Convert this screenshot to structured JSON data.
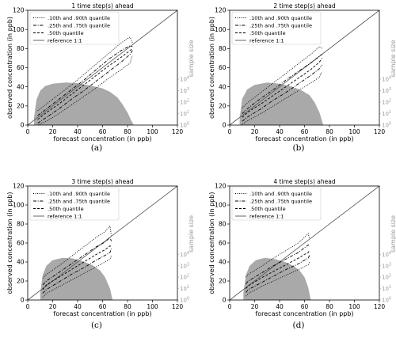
{
  "figure": {
    "captions": [
      "(a)",
      "(b)",
      "(c)",
      "(d)"
    ]
  },
  "styles": {
    "histogram_color": "#a9a9a9",
    "reference_color": "#555555",
    "sample_axis_color": "#999999"
  },
  "chart_data": [
    {
      "type": "line",
      "title": "1 time step(s) ahead",
      "xlabel": "forecast concentration (in ppb)",
      "ylabel": "observed concentration (in ppb)",
      "y2label": "sample size",
      "xlim": [
        0,
        120
      ],
      "ylim": [
        0,
        120
      ],
      "xticks": [
        0,
        20,
        40,
        60,
        80,
        100,
        120
      ],
      "yticks": [
        0,
        20,
        40,
        60,
        80,
        100,
        120
      ],
      "y2ticks": [
        "10^0",
        "10^1",
        "10^2",
        "10^3",
        "10^4"
      ],
      "legend": {
        "position": "upper-left",
        "entries": [
          ".10th and .90th quantile",
          ".25th and .75th quantile",
          ".50th quantile",
          "reference 1:1"
        ]
      },
      "reference": [
        [
          0,
          0
        ],
        [
          120,
          120
        ]
      ],
      "series": [
        {
          "name": ".10th quantile",
          "style": "dotted",
          "x": [
            8,
            15,
            25,
            35,
            45,
            55,
            65,
            75,
            82,
            84
          ],
          "y": [
            0,
            4,
            12,
            21,
            30,
            39,
            49,
            58,
            65,
            73
          ]
        },
        {
          "name": ".25th quantile",
          "style": "dashdot",
          "x": [
            8,
            15,
            25,
            35,
            45,
            55,
            65,
            75,
            82,
            84
          ],
          "y": [
            2,
            8,
            17,
            27,
            36,
            46,
            56,
            66,
            74,
            78
          ]
        },
        {
          "name": ".50th quantile",
          "style": "dashed",
          "x": [
            8,
            15,
            25,
            35,
            45,
            55,
            65,
            75,
            82,
            84
          ],
          "y": [
            6,
            13,
            22,
            32,
            42,
            52,
            62,
            71,
            78,
            80
          ]
        },
        {
          "name": ".75th quantile",
          "style": "dashdot",
          "x": [
            8,
            15,
            25,
            35,
            45,
            55,
            65,
            75,
            82,
            84
          ],
          "y": [
            10,
            17,
            27,
            37,
            47,
            58,
            69,
            78,
            83,
            82
          ]
        },
        {
          "name": ".90th quantile",
          "style": "dotted",
          "x": [
            8,
            15,
            25,
            35,
            45,
            55,
            65,
            75,
            82,
            84
          ],
          "y": [
            15,
            22,
            32,
            42,
            53,
            64,
            75,
            86,
            92,
            86
          ]
        }
      ],
      "histogram": {
        "x_range": [
          5,
          85
        ],
        "log_scale": true,
        "shape": [
          [
            5,
            0.6
          ],
          [
            7,
            2.2
          ],
          [
            10,
            3.0
          ],
          [
            14,
            3.4
          ],
          [
            20,
            3.6
          ],
          [
            30,
            3.7
          ],
          [
            40,
            3.65
          ],
          [
            50,
            3.45
          ],
          [
            60,
            3.2
          ],
          [
            66,
            2.9
          ],
          [
            72,
            2.4
          ],
          [
            76,
            1.8
          ],
          [
            80,
            1.1
          ],
          [
            83,
            0.4
          ],
          [
            85,
            0
          ]
        ]
      }
    },
    {
      "type": "line",
      "title": "2 time step(s) ahead",
      "xlabel": "forecast concentration (in ppb)",
      "ylabel": "observed concentration (in ppb)",
      "y2label": "sample size",
      "xlim": [
        0,
        120
      ],
      "ylim": [
        0,
        120
      ],
      "xticks": [
        0,
        20,
        40,
        60,
        80,
        100,
        120
      ],
      "yticks": [
        0,
        20,
        40,
        60,
        80,
        100,
        120
      ],
      "y2ticks": [
        "10^0",
        "10^1",
        "10^2",
        "10^3",
        "10^4"
      ],
      "legend": {
        "position": "upper-left",
        "entries": [
          ".10th and .90th quantile",
          ".25th and .75th quantile",
          ".50th quantile",
          "reference 1:1"
        ]
      },
      "reference": [
        [
          0,
          0
        ],
        [
          120,
          120
        ]
      ],
      "series": [
        {
          "name": ".10th quantile",
          "style": "dotted",
          "x": [
            10,
            15,
            25,
            35,
            45,
            55,
            65,
            72,
            74
          ],
          "y": [
            1,
            5,
            12,
            20,
            28,
            36,
            44,
            50,
            56
          ]
        },
        {
          "name": ".25th quantile",
          "style": "dashdot",
          "x": [
            10,
            15,
            25,
            35,
            45,
            55,
            65,
            72,
            74
          ],
          "y": [
            4,
            9,
            17,
            26,
            34,
            43,
            52,
            59,
            63
          ]
        },
        {
          "name": ".50th quantile",
          "style": "dashed",
          "x": [
            10,
            15,
            25,
            35,
            45,
            55,
            65,
            72,
            74
          ],
          "y": [
            8,
            14,
            22,
            31,
            40,
            49,
            58,
            66,
            70
          ]
        },
        {
          "name": ".75th quantile",
          "style": "dashdot",
          "x": [
            10,
            15,
            25,
            35,
            45,
            55,
            65,
            72,
            74
          ],
          "y": [
            12,
            18,
            28,
            37,
            47,
            56,
            65,
            72,
            74
          ]
        },
        {
          "name": ".90th quantile",
          "style": "dotted",
          "x": [
            10,
            15,
            25,
            35,
            45,
            55,
            65,
            72,
            74
          ],
          "y": [
            18,
            24,
            34,
            44,
            54,
            64,
            74,
            82,
            80
          ]
        }
      ],
      "histogram": {
        "x_range": [
          8,
          75
        ],
        "log_scale": true,
        "shape": [
          [
            8,
            0.6
          ],
          [
            10,
            2.3
          ],
          [
            14,
            3.1
          ],
          [
            20,
            3.5
          ],
          [
            30,
            3.7
          ],
          [
            40,
            3.6
          ],
          [
            50,
            3.35
          ],
          [
            58,
            3.0
          ],
          [
            64,
            2.6
          ],
          [
            68,
            2.0
          ],
          [
            72,
            1.1
          ],
          [
            75,
            0
          ]
        ]
      }
    },
    {
      "type": "line",
      "title": "3 time step(s) ahead",
      "xlabel": "forecast concentration (in ppb)",
      "ylabel": "observed concentration (in ppb)",
      "y2label": "sample size",
      "xlim": [
        0,
        120
      ],
      "ylim": [
        0,
        120
      ],
      "xticks": [
        0,
        20,
        40,
        60,
        80,
        100,
        120
      ],
      "yticks": [
        0,
        20,
        40,
        60,
        80,
        100,
        120
      ],
      "y2ticks": [
        "10^0",
        "10^1",
        "10^2",
        "10^3",
        "10^4"
      ],
      "legend": {
        "position": "upper-left",
        "entries": [
          ".10th and .90th quantile",
          ".25th and .75th quantile",
          ".50th quantile",
          "reference 1:1"
        ]
      },
      "reference": [
        [
          0,
          0
        ],
        [
          120,
          120
        ]
      ],
      "series": [
        {
          "name": ".10th quantile",
          "style": "dotted",
          "x": [
            12,
            15,
            25,
            35,
            45,
            55,
            62,
            66,
            67
          ],
          "y": [
            3,
            7,
            14,
            21,
            28,
            35,
            40,
            43,
            47
          ]
        },
        {
          "name": ".25th quantile",
          "style": "dashdot",
          "x": [
            12,
            15,
            25,
            35,
            45,
            55,
            62,
            66,
            67
          ],
          "y": [
            7,
            11,
            19,
            27,
            34,
            42,
            47,
            50,
            54
          ]
        },
        {
          "name": ".50th quantile",
          "style": "dashed",
          "x": [
            12,
            15,
            25,
            35,
            45,
            55,
            62,
            66,
            67
          ],
          "y": [
            11,
            16,
            24,
            32,
            40,
            48,
            53,
            57,
            56
          ]
        },
        {
          "name": ".75th quantile",
          "style": "dashdot",
          "x": [
            12,
            15,
            25,
            35,
            45,
            55,
            62,
            66,
            67
          ],
          "y": [
            16,
            20,
            29,
            38,
            47,
            56,
            61,
            66,
            62
          ]
        },
        {
          "name": ".90th quantile",
          "style": "dotted",
          "x": [
            12,
            15,
            25,
            35,
            45,
            55,
            62,
            66,
            67
          ],
          "y": [
            23,
            27,
            36,
            46,
            56,
            66,
            72,
            78,
            68
          ]
        }
      ],
      "histogram": {
        "x_range": [
          10,
          68
        ],
        "log_scale": true,
        "shape": [
          [
            10,
            0.6
          ],
          [
            12,
            2.2
          ],
          [
            15,
            3.0
          ],
          [
            20,
            3.5
          ],
          [
            28,
            3.7
          ],
          [
            36,
            3.65
          ],
          [
            44,
            3.4
          ],
          [
            52,
            3.05
          ],
          [
            58,
            2.6
          ],
          [
            62,
            2.0
          ],
          [
            66,
            1.0
          ],
          [
            68,
            0
          ]
        ]
      }
    },
    {
      "type": "line",
      "title": "4 time step(s) ahead",
      "xlabel": "forecast concentration (in ppb)",
      "ylabel": "observed concentration (in ppb)",
      "y2label": "sample size",
      "xlim": [
        0,
        120
      ],
      "ylim": [
        0,
        120
      ],
      "xticks": [
        0,
        20,
        40,
        60,
        80,
        100,
        120
      ],
      "yticks": [
        0,
        20,
        40,
        60,
        80,
        100,
        120
      ],
      "y2ticks": [
        "10^0",
        "10^1",
        "10^2",
        "10^3",
        "10^4"
      ],
      "legend": {
        "position": "upper-left",
        "entries": [
          ".10th and .90th quantile",
          ".25th and .75th quantile",
          ".50th quantile",
          "reference 1:1"
        ]
      },
      "reference": [
        [
          0,
          0
        ],
        [
          120,
          120
        ]
      ],
      "series": [
        {
          "name": ".10th quantile",
          "style": "dotted",
          "x": [
            13,
            15,
            25,
            35,
            45,
            55,
            60,
            63,
            64
          ],
          "y": [
            4,
            7,
            14,
            20,
            26,
            32,
            35,
            37,
            40
          ]
        },
        {
          "name": ".25th quantile",
          "style": "dashdot",
          "x": [
            13,
            15,
            25,
            35,
            45,
            55,
            60,
            63,
            64
          ],
          "y": [
            8,
            11,
            18,
            25,
            32,
            38,
            42,
            44,
            47
          ]
        },
        {
          "name": ".50th quantile",
          "style": "dashed",
          "x": [
            13,
            15,
            25,
            35,
            45,
            55,
            60,
            63,
            64
          ],
          "y": [
            12,
            15,
            23,
            30,
            37,
            44,
            48,
            50,
            52
          ]
        },
        {
          "name": ".75th quantile",
          "style": "dashdot",
          "x": [
            13,
            15,
            25,
            35,
            45,
            55,
            60,
            63,
            64
          ],
          "y": [
            17,
            20,
            28,
            36,
            43,
            50,
            55,
            58,
            57
          ]
        },
        {
          "name": ".90th quantile",
          "style": "dotted",
          "x": [
            13,
            15,
            25,
            35,
            45,
            55,
            60,
            63,
            64
          ],
          "y": [
            24,
            27,
            35,
            44,
            52,
            60,
            66,
            70,
            64
          ]
        }
      ],
      "histogram": {
        "x_range": [
          11,
          65
        ],
        "log_scale": true,
        "shape": [
          [
            11,
            0.6
          ],
          [
            13,
            2.2
          ],
          [
            16,
            3.0
          ],
          [
            21,
            3.5
          ],
          [
            28,
            3.7
          ],
          [
            36,
            3.6
          ],
          [
            44,
            3.35
          ],
          [
            51,
            3.0
          ],
          [
            56,
            2.6
          ],
          [
            60,
            2.0
          ],
          [
            63,
            1.1
          ],
          [
            65,
            0
          ]
        ]
      }
    }
  ]
}
